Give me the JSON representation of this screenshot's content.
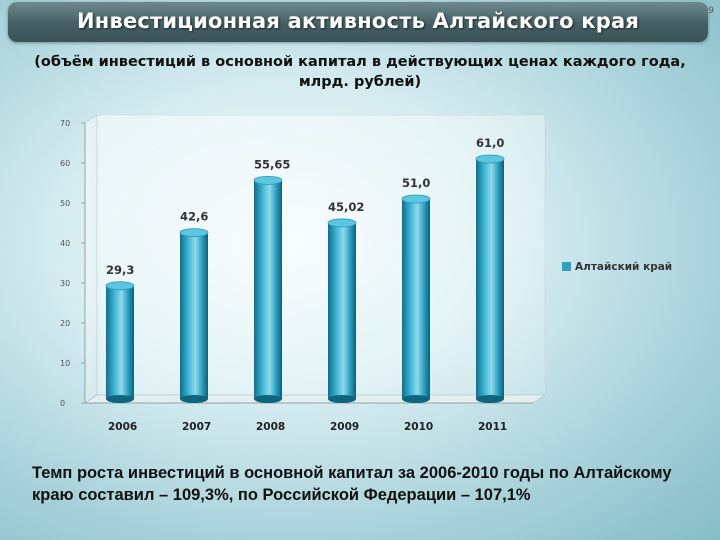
{
  "header": {
    "title": "Инвестиционная активность  Алтайского края",
    "page_number": "9"
  },
  "subtitle": "(объём инвестиций в основной капитал в действующих ценах каждого года, млрд. рублей)",
  "chart_data": {
    "type": "bar",
    "categories": [
      "2006",
      "2007",
      "2008",
      "2009",
      "2010",
      "2011"
    ],
    "series": [
      {
        "name": "Алтайский край",
        "values": [
          29.3,
          42.6,
          55.65,
          45.02,
          51.0,
          61.0
        ]
      }
    ],
    "data_labels": [
      "29,3",
      "42,6",
      "55,65",
      "45,02",
      "51,0",
      "61,0"
    ],
    "ylim": [
      0,
      70
    ],
    "yticks": [
      "0",
      "10",
      "20",
      "30",
      "40",
      "50",
      "60",
      "70"
    ],
    "legend_position": "right",
    "grid": false,
    "bar_color": "#2ea1c2",
    "bar_style": "3d-cylinder"
  },
  "footnote": "Темп роста инвестиций в основной капитал за 2006-2010 годы по Алтайскому краю составил – 109,3%, по Российской Федерации – 107,1%"
}
